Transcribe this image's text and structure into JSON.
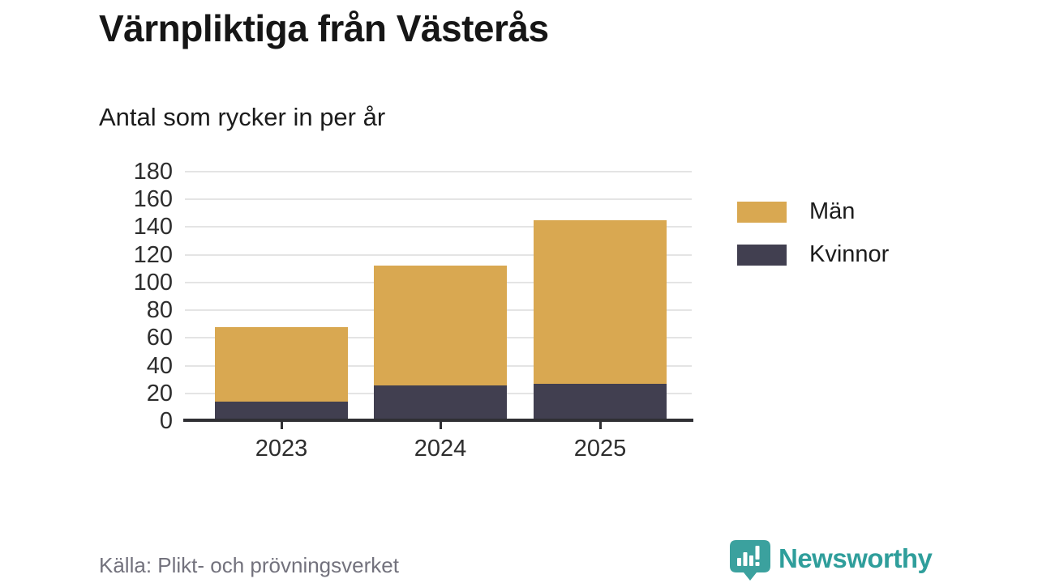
{
  "header": {
    "title": "Värnpliktiga från Västerås",
    "subtitle": "Antal som rycker in per år"
  },
  "chart_data": {
    "type": "bar",
    "stacked": true,
    "title": "Värnpliktiga från Västerås",
    "subtitle": "Antal som rycker in per år",
    "categories": [
      "2023",
      "2024",
      "2025"
    ],
    "series": [
      {
        "name": "Män",
        "color": "#D9A851",
        "values": [
          54,
          86,
          118
        ]
      },
      {
        "name": "Kvinnor",
        "color": "#413F50",
        "values": [
          14,
          26,
          27
        ]
      }
    ],
    "stack_order_bottom_to_top": [
      "Kvinnor",
      "Män"
    ],
    "totals": [
      68,
      112,
      145
    ],
    "ylim": [
      0,
      180
    ],
    "yticks": [
      0,
      20,
      40,
      60,
      80,
      100,
      120,
      140,
      160,
      180
    ],
    "grid": "horizontal-only",
    "legend_position": "right"
  },
  "footer": {
    "source": "Källa: Plikt- och prövningsverket",
    "brand": "Newsworthy"
  },
  "colors": {
    "men": "#D9A851",
    "women": "#413F50",
    "brand_teal": "#3BA19E",
    "gridline": "#E4E4E4",
    "axis": "#2F2F33",
    "source_text": "#73727D"
  }
}
